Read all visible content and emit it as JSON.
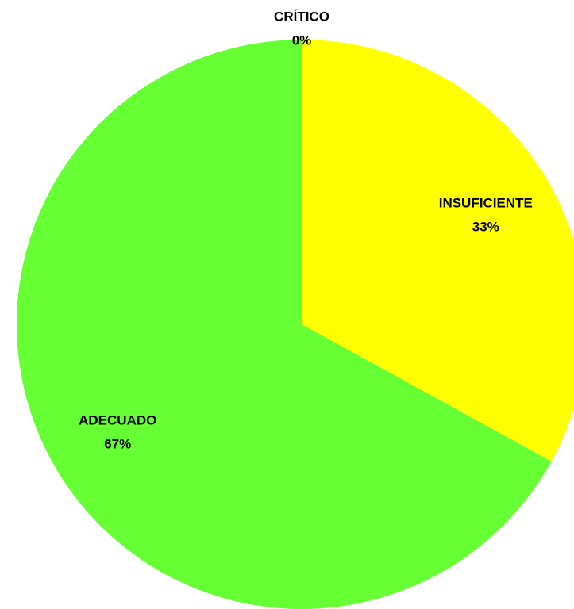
{
  "chart_data": {
    "type": "pie",
    "categories": [
      "CRÍTICO",
      "INSUFICIENTE",
      "ADECUADO"
    ],
    "values": [
      0,
      33,
      67
    ],
    "value_labels": [
      "0%",
      "33%",
      "67%"
    ],
    "colors": [
      "#ff0000",
      "#ffff00",
      "#66ff33"
    ]
  }
}
